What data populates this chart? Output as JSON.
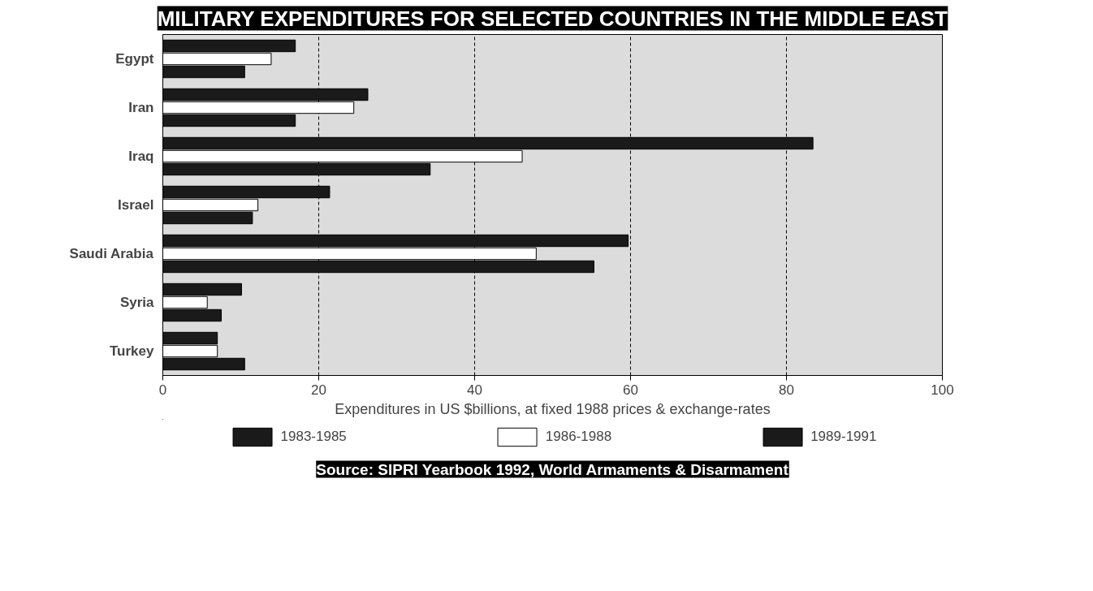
{
  "chart_data": {
    "type": "bar",
    "orientation": "horizontal",
    "title": "MILITARY EXPENDITURES FOR SELECTED COUNTRIES IN THE MIDDLE EAST",
    "xlabel": "Expenditures in US $billions, at fixed 1988 prices & exchange-rates",
    "annotations": [
      "Source: SIPRI Yearbook 1992, World Armaments & Disarmament"
    ],
    "categories": [
      "Egypt",
      "Iran",
      "Iraq",
      "Israel",
      "Saudi Arabia",
      "Syria",
      "Turkey"
    ],
    "series": [
      {
        "name": "1983-1985",
        "color": "#1a1a1a",
        "values": [
          17.0,
          26.3,
          83.4,
          21.4,
          59.7,
          10.1,
          7.0
        ]
      },
      {
        "name": "1986-1988",
        "color": "#ffffff",
        "values": [
          13.9,
          24.5,
          46.1,
          12.2,
          47.9,
          5.7,
          7.0
        ]
      },
      {
        "name": "1989-1991",
        "color": "#1a1a1a",
        "values": [
          10.5,
          17.0,
          34.3,
          11.5,
          55.3,
          7.5,
          10.5
        ]
      }
    ],
    "xlim": [
      0,
      100
    ],
    "xticks": [
      0,
      20,
      40,
      60,
      80,
      100
    ],
    "grid": "x",
    "legend": "bottom"
  }
}
